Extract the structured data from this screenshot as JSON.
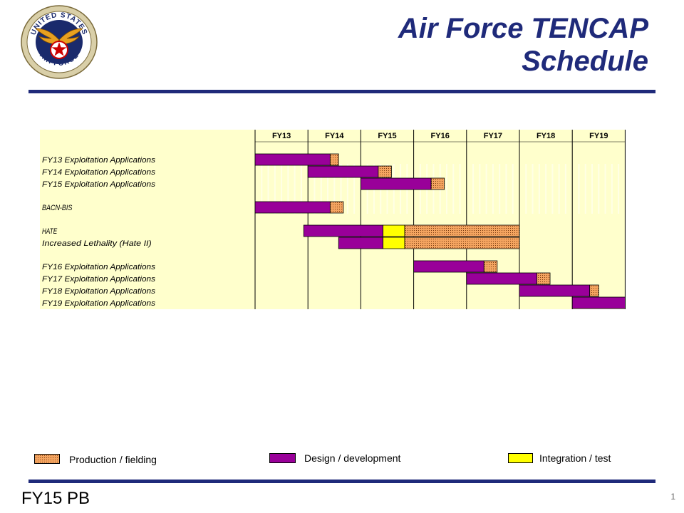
{
  "title": {
    "line1": "Air Force TENCAP",
    "line2": "Schedule"
  },
  "logo": {
    "top_text": "UNITED STATES",
    "bottom_text": "AIR FORCE",
    "icon": "air-force-roundel-wings-icon"
  },
  "colors": {
    "title": "#1f2a7a",
    "rule": "#1f2a7a",
    "chart_background": "#ffffcc",
    "design": "#990099",
    "production": "#f4a460",
    "production_dots": "#7a3b10",
    "integration": "#ffff00"
  },
  "chart_data": {
    "type": "gantt",
    "fiscal_years": [
      "FY13",
      "FY14",
      "FY15",
      "FY16",
      "FY17",
      "FY18",
      "FY19"
    ],
    "rows": [
      {
        "label": "FY13 Exploitation Applications",
        "group": 0,
        "segments": [
          {
            "phase": "design",
            "start": 0.0,
            "end": 1.42
          },
          {
            "phase": "production",
            "start": 1.42,
            "end": 1.58
          }
        ]
      },
      {
        "label": "FY14 Exploitation Applications",
        "group": 0,
        "segments": [
          {
            "phase": "design",
            "start": 1.0,
            "end": 2.33
          },
          {
            "phase": "production",
            "start": 2.33,
            "end": 2.58
          }
        ]
      },
      {
        "label": "FY15 Exploitation Applications",
        "group": 0,
        "segments": [
          {
            "phase": "design",
            "start": 2.0,
            "end": 3.33
          },
          {
            "phase": "production",
            "start": 3.33,
            "end": 3.58
          }
        ]
      },
      {
        "label": "BACN-BIS",
        "group": 1,
        "segments": [
          {
            "phase": "design",
            "start": 0.0,
            "end": 1.42
          },
          {
            "phase": "production",
            "start": 1.42,
            "end": 1.67
          }
        ]
      },
      {
        "label": "HATE",
        "group": 2,
        "segments": [
          {
            "phase": "design",
            "start": 0.92,
            "end": 2.42
          },
          {
            "phase": "integration",
            "start": 2.42,
            "end": 2.83
          },
          {
            "phase": "production",
            "start": 2.83,
            "end": 5.0
          }
        ]
      },
      {
        "label": "Increased Lethality (Hate II)",
        "group": 2,
        "segments": [
          {
            "phase": "design",
            "start": 1.58,
            "end": 2.42
          },
          {
            "phase": "integration",
            "start": 2.42,
            "end": 2.83
          },
          {
            "phase": "production",
            "start": 2.83,
            "end": 5.0
          }
        ]
      },
      {
        "label": "FY16 Exploitation Applications",
        "group": 3,
        "segments": [
          {
            "phase": "design",
            "start": 3.0,
            "end": 4.33
          },
          {
            "phase": "production",
            "start": 4.33,
            "end": 4.58
          }
        ]
      },
      {
        "label": "FY17 Exploitation Applications",
        "group": 3,
        "segments": [
          {
            "phase": "design",
            "start": 4.0,
            "end": 5.33
          },
          {
            "phase": "production",
            "start": 5.33,
            "end": 5.58
          }
        ]
      },
      {
        "label": "FY18 Exploitation Applications",
        "group": 3,
        "segments": [
          {
            "phase": "design",
            "start": 5.0,
            "end": 6.33
          },
          {
            "phase": "production",
            "start": 6.33,
            "end": 6.5
          }
        ]
      },
      {
        "label": "FY19 Exploitation Applications",
        "group": 3,
        "segments": [
          {
            "phase": "design",
            "start": 6.0,
            "end": 7.0
          }
        ]
      }
    ]
  },
  "legend": {
    "production": "Production / fielding",
    "design": "Design / development",
    "integration": "Integration  / test"
  },
  "footer": {
    "left": "FY15 PB",
    "page_number": "1"
  }
}
